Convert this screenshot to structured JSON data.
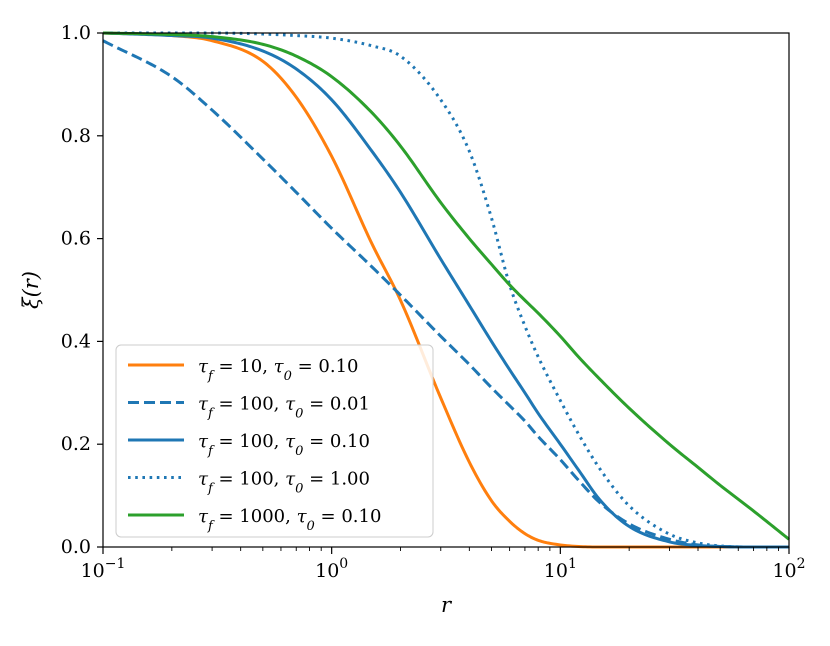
{
  "chart_data": {
    "type": "line",
    "title": "",
    "xlabel": "r",
    "ylabel": "ξ(r)",
    "xscale": "log",
    "xlim": [
      0.1,
      100
    ],
    "ylim": [
      0.0,
      1.0
    ],
    "grid": false,
    "legend_position": "lower-left",
    "x_ticks": [
      {
        "value": 0.1,
        "base": "10",
        "exp": "−1"
      },
      {
        "value": 1,
        "base": "10",
        "exp": "0"
      },
      {
        "value": 10,
        "base": "10",
        "exp": "1"
      },
      {
        "value": 100,
        "base": "10",
        "exp": "2"
      }
    ],
    "y_ticks": [
      "0.0",
      "0.2",
      "0.4",
      "0.6",
      "0.8",
      "1.0"
    ],
    "x": [
      0.1,
      0.2,
      0.3,
      0.5,
      0.7,
      1,
      1.5,
      2,
      3,
      4,
      5,
      6,
      7,
      8,
      10,
      12,
      15,
      20,
      30,
      40,
      50,
      70,
      100
    ],
    "series": [
      {
        "name": "τf = 10, τ0 = 0.10",
        "color": "#ff7f0e",
        "dash": "solid",
        "values": [
          1.0,
          0.995,
          0.985,
          0.945,
          0.875,
          0.76,
          0.59,
          0.48,
          0.29,
          0.165,
          0.09,
          0.05,
          0.026,
          0.013,
          0.004,
          0.001,
          0.0,
          0.0,
          0.0,
          0.0,
          0.0,
          0.0,
          0.0
        ]
      },
      {
        "name": "τf = 100, τ0 = 0.01",
        "color": "#1f77b4",
        "dash": "dashed",
        "values": [
          0.985,
          0.915,
          0.85,
          0.755,
          0.69,
          0.62,
          0.545,
          0.49,
          0.41,
          0.355,
          0.31,
          0.275,
          0.245,
          0.215,
          0.17,
          0.13,
          0.085,
          0.045,
          0.015,
          0.004,
          0.001,
          0.0,
          0.0
        ]
      },
      {
        "name": "τf = 100, τ0 = 0.10",
        "color": "#1f77b4",
        "dash": "solid",
        "values": [
          1.0,
          0.995,
          0.99,
          0.965,
          0.93,
          0.87,
          0.77,
          0.69,
          0.56,
          0.47,
          0.4,
          0.345,
          0.3,
          0.26,
          0.2,
          0.15,
          0.09,
          0.04,
          0.01,
          0.003,
          0.001,
          0.0,
          0.0
        ]
      },
      {
        "name": "τf = 100, τ0 = 1.00",
        "color": "#1f77b4",
        "dash": "dotted",
        "values": [
          1.0,
          1.0,
          1.0,
          0.998,
          0.995,
          0.99,
          0.975,
          0.955,
          0.87,
          0.77,
          0.64,
          0.51,
          0.43,
          0.37,
          0.285,
          0.22,
          0.15,
          0.08,
          0.025,
          0.008,
          0.002,
          0.0,
          0.0
        ]
      },
      {
        "name": "τf = 1000, τ0 = 0.10",
        "color": "#2ca02c",
        "dash": "solid",
        "values": [
          1.0,
          0.997,
          0.993,
          0.978,
          0.955,
          0.915,
          0.845,
          0.78,
          0.67,
          0.6,
          0.55,
          0.51,
          0.48,
          0.455,
          0.41,
          0.37,
          0.325,
          0.27,
          0.2,
          0.155,
          0.12,
          0.07,
          0.015
        ]
      }
    ],
    "legend_labels": [
      {
        "tau_f": "10",
        "tau_0": "0.10"
      },
      {
        "tau_f": "100",
        "tau_0": "0.01"
      },
      {
        "tau_f": "100",
        "tau_0": "0.10"
      },
      {
        "tau_f": "100",
        "tau_0": "1.00"
      },
      {
        "tau_f": "1000",
        "tau_0": "0.10"
      }
    ]
  }
}
